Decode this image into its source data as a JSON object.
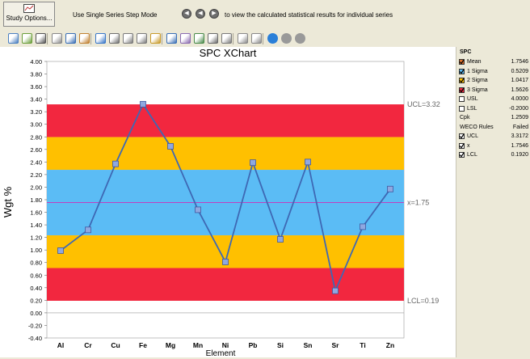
{
  "top_toolbar": {
    "study_options_label": "Study Options...",
    "step_mode_label": "Use Single Series Step Mode",
    "step_mode_hint": "to view the calculated statistical results for individual series"
  },
  "chart": {
    "title": "SPC XChart",
    "ylabel": "Wgt %",
    "xlabel": "Element",
    "ucl_label": "UCL=3.32",
    "mean_label": "x=1.75",
    "lcl_label": "LCL=0.19"
  },
  "chart_data": {
    "type": "line",
    "title": "SPC XChart",
    "xlabel": "Element",
    "ylabel": "Wgt %",
    "categories": [
      "Al",
      "Cr",
      "Cu",
      "Fe",
      "Mg",
      "Mn",
      "Ni",
      "Pb",
      "Si",
      "Sn",
      "Sr",
      "Ti",
      "Zn"
    ],
    "values": [
      0.99,
      1.32,
      2.37,
      3.32,
      2.65,
      1.64,
      0.81,
      2.39,
      1.17,
      2.4,
      0.35,
      1.37,
      1.97
    ],
    "ylim": [
      -0.4,
      4.0
    ],
    "yticks": [
      "4.00",
      "3.80",
      "3.60",
      "3.40",
      "3.20",
      "3.00",
      "2.80",
      "2.60",
      "2.40",
      "2.20",
      "2.00",
      "1.80",
      "1.60",
      "1.40",
      "1.20",
      "1.00",
      "0.80",
      "0.60",
      "0.40",
      "0.20",
      "0.00",
      "-0.20",
      "-0.40"
    ],
    "mean": 1.7546,
    "sigma": 0.5209,
    "ucl": 3.3172,
    "lcl": 0.192,
    "bands": [
      {
        "name": "3 Sigma",
        "color": "#f2273f"
      },
      {
        "name": "2 Sigma",
        "color": "#ffc000"
      },
      {
        "name": "1 Sigma",
        "color": "#5bbcf5"
      }
    ],
    "line_color": "#3e68b4",
    "marker_color": "#8fa8e0",
    "mean_line_color": "#c040c0",
    "grid": false,
    "legend": "right-panel"
  },
  "side": {
    "heading": "SPC",
    "items": [
      {
        "label": "Mean",
        "value": "1.7546",
        "checked": true,
        "swatch": "#e0702a"
      },
      {
        "label": "1 Sigma",
        "value": "0.5209",
        "checked": true,
        "swatch": "#5bbcf5"
      },
      {
        "label": "2 Sigma",
        "value": "1.0417",
        "checked": true,
        "swatch": "#ffc000"
      },
      {
        "label": "3 Sigma",
        "value": "1.5626",
        "checked": true,
        "swatch": "#f2273f"
      },
      {
        "label": "USL",
        "value": "4.0000",
        "checked": false,
        "swatch": ""
      },
      {
        "label": "LSL",
        "value": "-0.2000",
        "checked": false,
        "swatch": ""
      }
    ],
    "cpk_label": "Cpk",
    "cpk_value": "1.2509",
    "weco_label": "WECO Rules",
    "weco_value": "Failed",
    "weco_items": [
      {
        "label": "UCL",
        "value": "3.3172",
        "checked": true
      },
      {
        "label": "x",
        "value": "1.7546",
        "checked": true
      },
      {
        "label": "LCL",
        "value": "0.1920",
        "checked": true
      }
    ]
  },
  "toolbar_icons": [
    "wizard-icon",
    "copy-icon",
    "print-icon",
    "chart-type-icon",
    "select-arrow-icon",
    "edit-icon",
    "zoom-icon",
    "table-icon",
    "pan-horizontal-icon",
    "pan-vertical-icon",
    "export-icon",
    "gallery-icon",
    "axis-icon",
    "data-editor-icon",
    "legend-icon",
    "preview-icon",
    "tools-icon",
    "tools2-icon",
    "circle-button-1",
    "circle-button-2",
    "circle-button-3"
  ]
}
